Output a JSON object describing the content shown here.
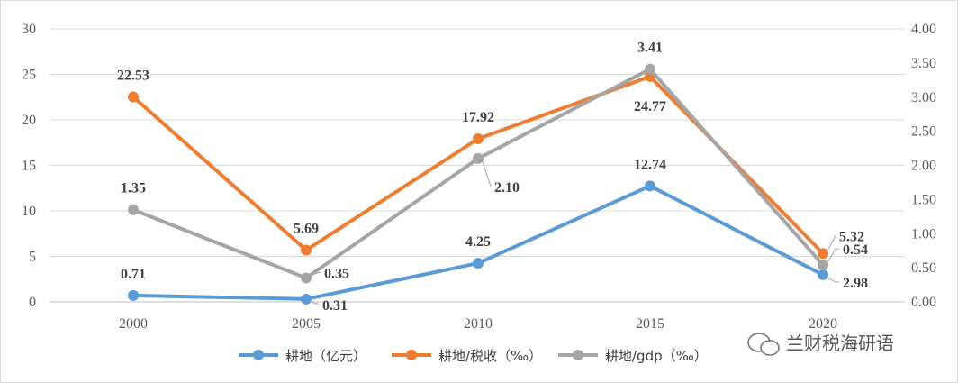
{
  "chart_data": {
    "type": "line",
    "categories": [
      "2000",
      "2005",
      "2010",
      "2015",
      "2020"
    ],
    "left_axis": {
      "ticks": [
        "0",
        "5",
        "10",
        "15",
        "20",
        "25",
        "30"
      ],
      "ylim": [
        0,
        30
      ]
    },
    "right_axis": {
      "ticks": [
        "0.00",
        "0.50",
        "1.00",
        "1.50",
        "2.00",
        "2.50",
        "3.00",
        "3.50",
        "4.00"
      ],
      "ylim": [
        0,
        4
      ]
    },
    "series": [
      {
        "name": "耕地（亿元）",
        "axis": "left",
        "color": "#5b9bd5",
        "values": [
          0.71,
          0.31,
          4.25,
          12.74,
          2.98
        ],
        "labels": [
          "0.71",
          "0.31",
          "4.25",
          "12.74",
          "2.98"
        ]
      },
      {
        "name": "耕地/税收（‰）",
        "axis": "left",
        "color": "#ed7d31",
        "values": [
          22.53,
          5.69,
          17.92,
          24.77,
          5.32
        ],
        "labels": [
          "22.53",
          "5.69",
          "17.92",
          "24.77",
          "5.32"
        ]
      },
      {
        "name": "耕地/gdp（‰）",
        "axis": "right",
        "color": "#a5a5a5",
        "values": [
          1.35,
          0.35,
          2.1,
          3.41,
          0.54
        ],
        "labels": [
          "1.35",
          "0.35",
          "2.10",
          "3.41",
          "0.54"
        ]
      }
    ],
    "legend_position": "bottom",
    "grid": true
  },
  "watermark": {
    "text": "兰财税海研语",
    "icon": "wechat-icon"
  }
}
